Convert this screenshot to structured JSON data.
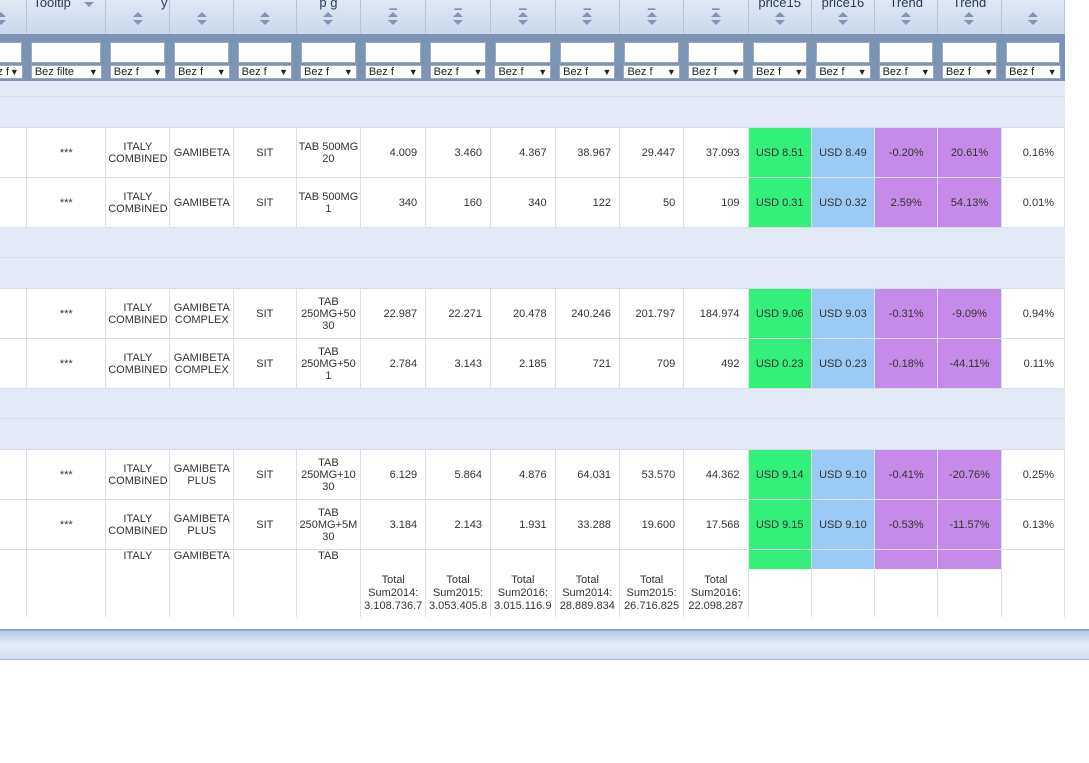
{
  "header": {
    "labels": [
      "",
      "Tooltip",
      "y",
      "",
      "",
      "p        g",
      "_",
      "_",
      "_",
      "_",
      "_",
      "_",
      "price15",
      "price16",
      "Trend",
      "Trend",
      ""
    ]
  },
  "filters": {
    "label_wide": "Bez filte",
    "label_short": "Bez f",
    "arrow": "▼"
  },
  "rows": [
    {
      "tooltip": "***",
      "country": "ITALY COMBINED",
      "brand": "GAMIBETA",
      "atc": "SIT",
      "pack": "TAB 500MG 20",
      "u14": "4.009",
      "u15": "3.460",
      "u16": "4.367",
      "v14": "38.967",
      "v15": "29.447",
      "v16": "37.093",
      "price15": "USD 8.51",
      "price16": "USD 8.49",
      "trend1": "-0.20%",
      "trend2": "20.61%",
      "share": "0.16%"
    },
    {
      "tooltip": "***",
      "country": "ITALY COMBINED",
      "brand": "GAMIBETA",
      "atc": "SIT",
      "pack": "TAB 500MG 1",
      "u14": "340",
      "u15": "160",
      "u16": "340",
      "v14": "122",
      "v15": "50",
      "v16": "109",
      "price15": "USD 0.31",
      "price16": "USD 0.32",
      "trend1": "2.59%",
      "trend2": "54.13%",
      "share": "0.01%"
    },
    {
      "tooltip": "***",
      "country": "ITALY COMBINED",
      "brand": "GAMIBETA COMPLEX",
      "atc": "SIT",
      "pack": "TAB 250MG+50 30",
      "u14": "22.987",
      "u15": "22.271",
      "u16": "20.478",
      "v14": "240.246",
      "v15": "201.797",
      "v16": "184.974",
      "price15": "USD 9.06",
      "price16": "USD 9.03",
      "trend1": "-0.31%",
      "trend2": "-9.09%",
      "share": "0.94%"
    },
    {
      "tooltip": "***",
      "country": "ITALY COMBINED",
      "brand": "GAMIBETA COMPLEX",
      "atc": "SIT",
      "pack": "TAB 250MG+50 1",
      "u14": "2.784",
      "u15": "3.143",
      "u16": "2.185",
      "v14": "721",
      "v15": "709",
      "v16": "492",
      "price15": "USD 0.23",
      "price16": "USD 0.23",
      "trend1": "-0.18%",
      "trend2": "-44.11%",
      "share": "0.11%"
    },
    {
      "tooltip": "***",
      "country": "ITALY COMBINED",
      "brand": "GAMIBETA PLUS",
      "atc": "SIT",
      "pack": "TAB 250MG+10 30",
      "u14": "6.129",
      "u15": "5.864",
      "u16": "4.876",
      "v14": "64.031",
      "v15": "53.570",
      "v16": "44.362",
      "price15": "USD 9.14",
      "price16": "USD 9.10",
      "trend1": "-0.41%",
      "trend2": "-20.76%",
      "share": "0.25%"
    },
    {
      "tooltip": "***",
      "country": "ITALY COMBINED",
      "brand": "GAMIBETA PLUS",
      "atc": "SIT",
      "pack": "TAB 250MG+5M 30",
      "u14": "3.184",
      "u15": "2.143",
      "u16": "1.931",
      "v14": "33.288",
      "v15": "19.600",
      "v16": "17.568",
      "price15": "USD 9.15",
      "price16": "USD 9.10",
      "trend1": "-0.53%",
      "trend2": "-11.57%",
      "share": "0.13%"
    }
  ],
  "partial_row": {
    "country": "ITALY",
    "brand": "GAMIBETA",
    "pack": "TAB"
  },
  "totals": [
    {
      "label": "Total",
      "name": "Sum2014:",
      "value": "3.108.736.7"
    },
    {
      "label": "Total",
      "name": "Sum2015:",
      "value": "3.053.405.8"
    },
    {
      "label": "Total",
      "name": "Sum2016:",
      "value": "3.015.116.9"
    },
    {
      "label": "Total",
      "name": "Sum2014:",
      "value": "28.889.834"
    },
    {
      "label": "Total",
      "name": "Sum2015:",
      "value": "26.716.825"
    },
    {
      "label": "Total",
      "name": "Sum2016:",
      "value": "22.098.287"
    }
  ],
  "colors": {
    "price15_bg": "#33f07a",
    "price16_bg": "#9ccaf7",
    "trend_bg": "#c58be8",
    "group_bg": "#e3eaf6",
    "filter_bg": "#7c94b4"
  }
}
